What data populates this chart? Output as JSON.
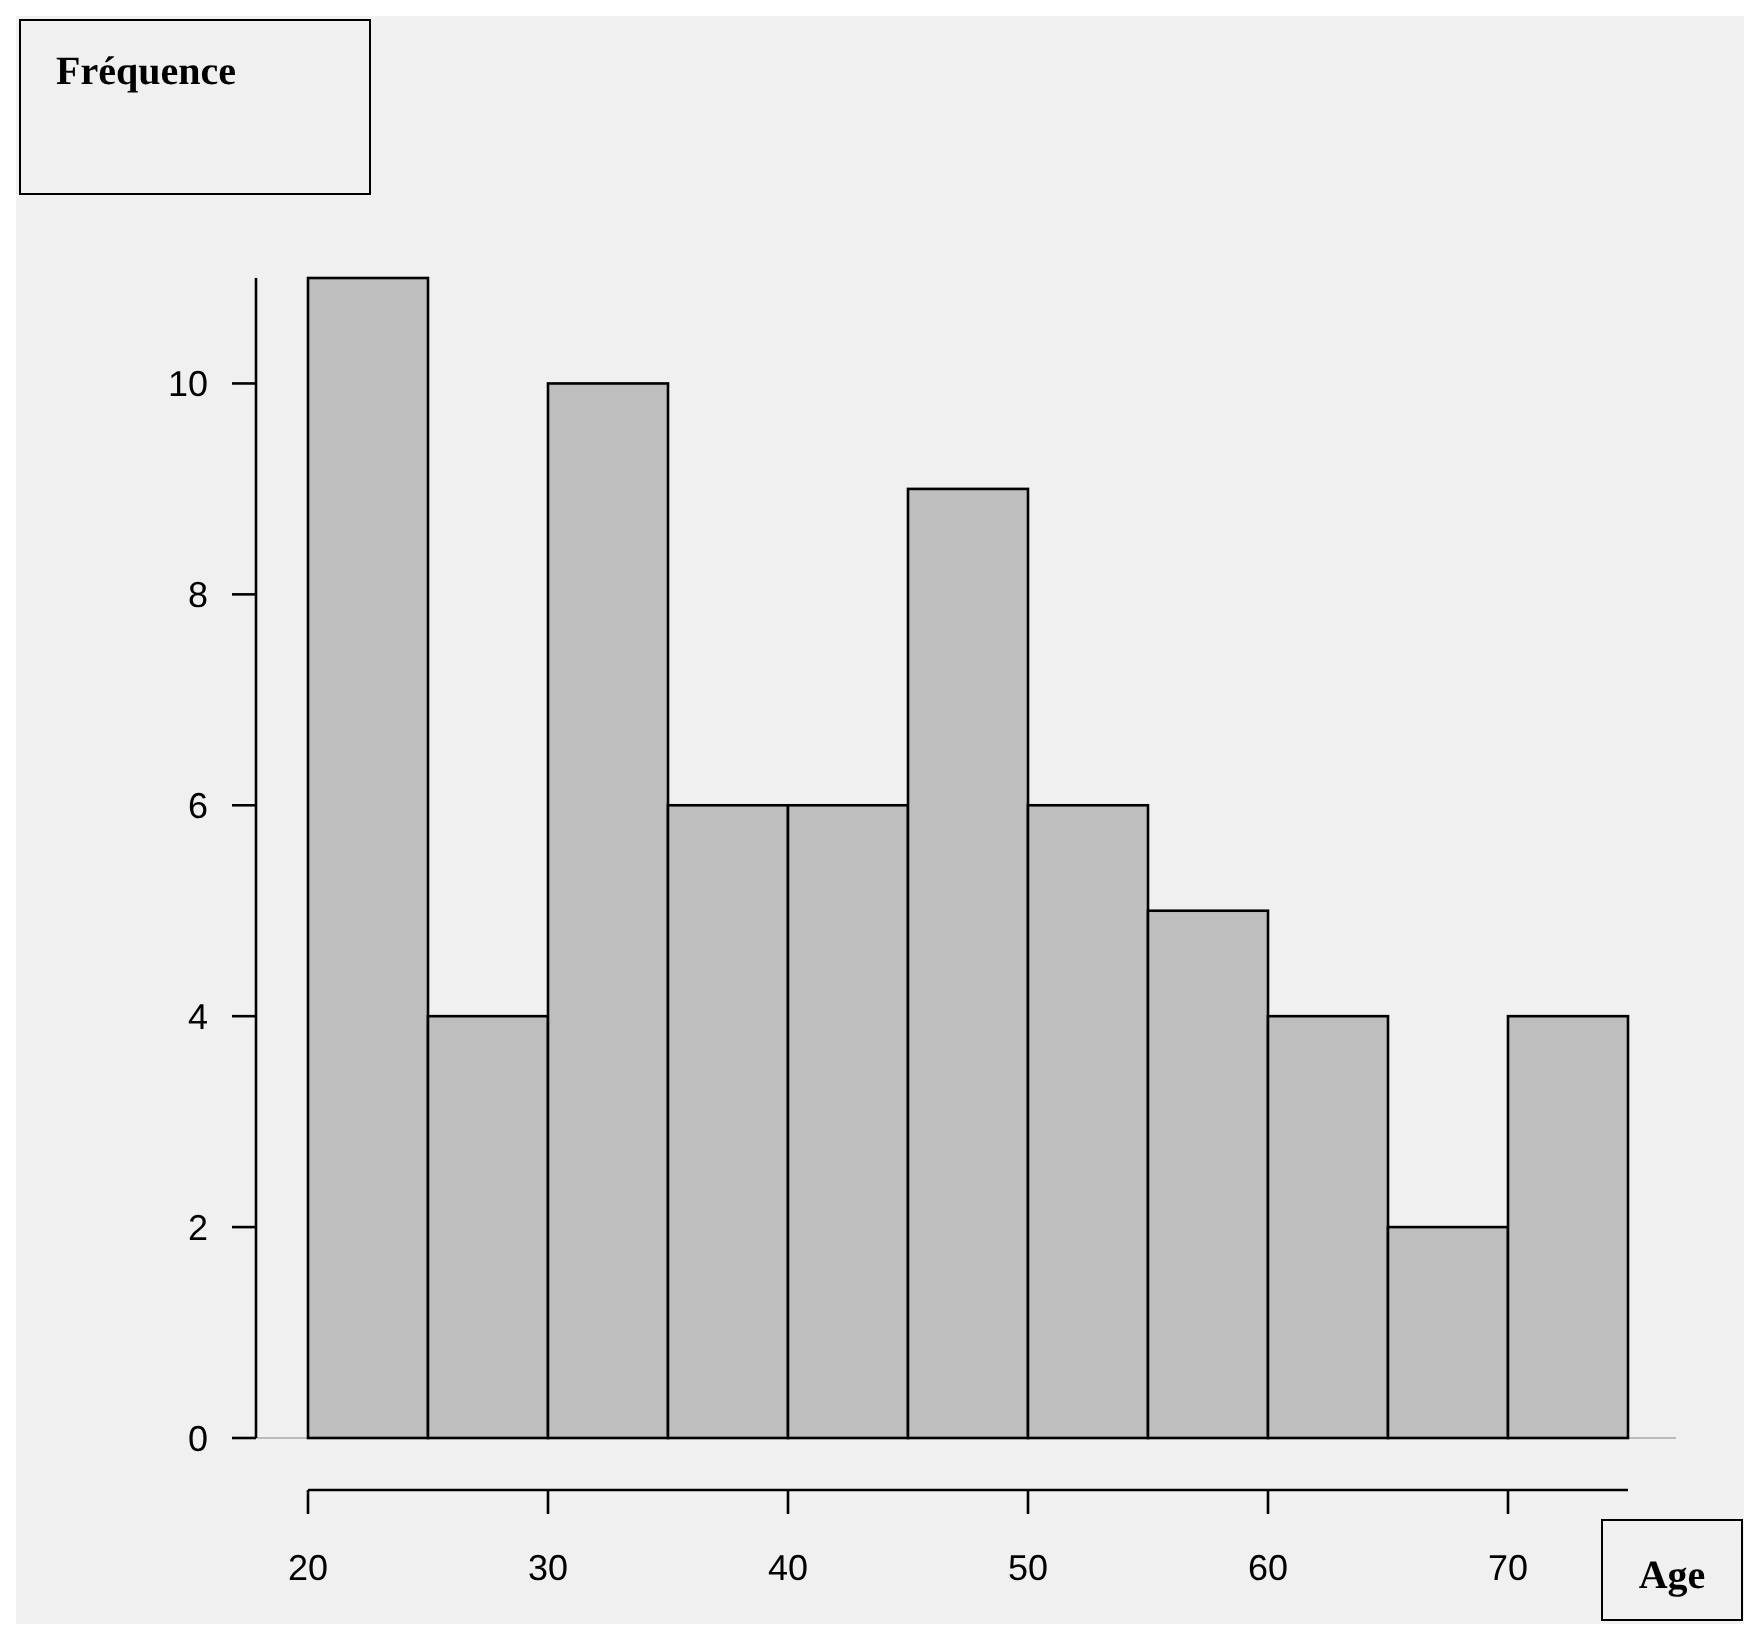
{
  "chart_data": {
    "type": "histogram",
    "xlabel": "Age",
    "ylabel": "Fréquence",
    "bins": [
      20,
      25,
      30,
      35,
      40,
      45,
      50,
      55,
      60,
      65,
      70,
      75
    ],
    "values": [
      11,
      4,
      10,
      6,
      6,
      9,
      6,
      5,
      4,
      2,
      4
    ],
    "color": "#bebebe",
    "xlim": [
      20,
      75
    ],
    "xticks": [
      20,
      30,
      40,
      50,
      60,
      70
    ],
    "ylim": [
      0,
      11
    ],
    "yticks": [
      0,
      2,
      4,
      6,
      8,
      10
    ],
    "grid": false
  }
}
